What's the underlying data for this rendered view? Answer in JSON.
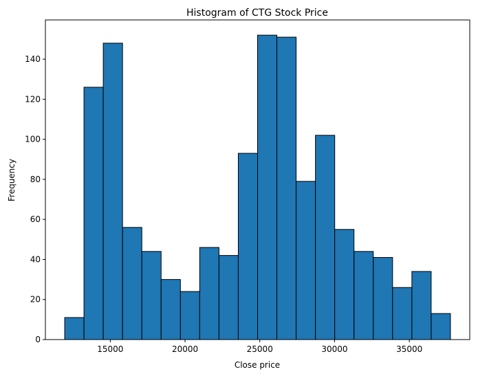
{
  "chart_data": {
    "type": "bar",
    "title": "Histogram of CTG Stock Price",
    "xlabel": "Close price",
    "ylabel": "Frequency",
    "bin_edges": [
      11950,
      13240,
      14530,
      15820,
      17110,
      18400,
      19690,
      20980,
      22270,
      23560,
      24850,
      26140,
      27430,
      28720,
      30010,
      31300,
      32590,
      33880,
      35170,
      36460,
      37750
    ],
    "values": [
      11,
      126,
      148,
      56,
      44,
      30,
      24,
      46,
      42,
      93,
      152,
      151,
      79,
      102,
      55,
      44,
      41,
      26,
      34,
      13
    ],
    "xticks": [
      15000,
      20000,
      25000,
      30000,
      35000
    ],
    "yticks": [
      0,
      20,
      40,
      60,
      80,
      100,
      120,
      140
    ],
    "xlim": [
      10660,
      39040
    ],
    "ylim": [
      0,
      159.6
    ],
    "bar_color": "#1f77b4",
    "edge_color": "#000000",
    "grid": false,
    "legend": "none"
  }
}
